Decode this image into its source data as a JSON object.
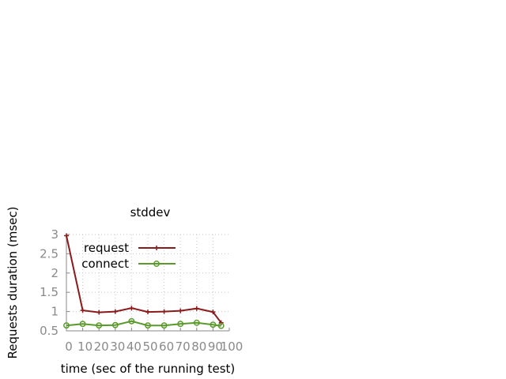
{
  "chart_data": {
    "type": "line",
    "title": "stddev",
    "xlabel": "time (sec of the running test)",
    "ylabel": "Requests duration (msec)",
    "xlim": [
      0,
      100
    ],
    "ylim": [
      0.5,
      3
    ],
    "xticks": [
      "0",
      "10",
      "20",
      "30",
      "40",
      "50",
      "60",
      "70",
      "80",
      "90",
      "100"
    ],
    "yticks": [
      "0.5",
      "1",
      "1.5",
      "2",
      "2.5",
      "3"
    ],
    "grid": true,
    "legend_position": "top-right",
    "x": [
      0,
      10,
      20,
      30,
      40,
      50,
      60,
      70,
      80,
      90,
      95
    ],
    "series": [
      {
        "name": "request",
        "color": "#8b1a1a",
        "marker": "plus",
        "values": [
          2.97,
          1.03,
          0.98,
          1.0,
          1.09,
          0.99,
          1.0,
          1.02,
          1.08,
          0.99,
          0.71
        ]
      },
      {
        "name": "connect",
        "color": "#5a9a2a",
        "marker": "circle",
        "values": [
          0.64,
          0.68,
          0.64,
          0.65,
          0.75,
          0.64,
          0.64,
          0.68,
          0.71,
          0.66,
          0.63
        ]
      }
    ]
  }
}
